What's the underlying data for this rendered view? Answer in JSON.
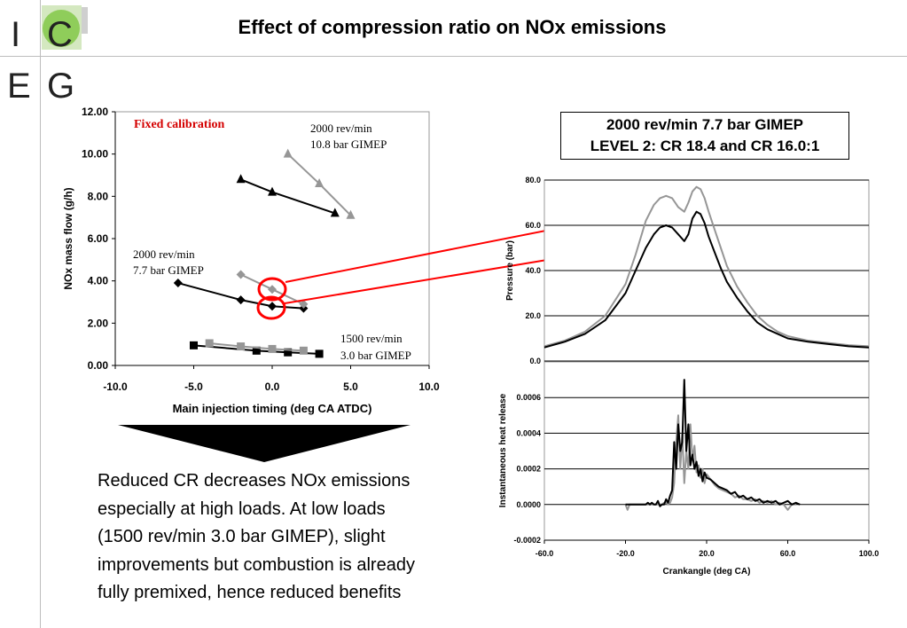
{
  "logo": {
    "letters": [
      "I",
      "C",
      "E",
      "G"
    ]
  },
  "title": "Effect of compression ratio on NOx emissions",
  "box_title": {
    "line1": "2000 rev/min 7.7 bar GIMEP",
    "line2": "LEVEL 2: CR 18.4 and CR 16.0:1"
  },
  "annotations": {
    "fixed": "Fixed calibration",
    "high_load_1": "2000 rev/min",
    "high_load_2": "10.8 bar GIMEP",
    "mid_load_1": "2000 rev/min",
    "mid_load_2": "7.7 bar GIMEP",
    "low_load_1": "1500 rev/min",
    "low_load_2": "3.0 bar GIMEP"
  },
  "body_text_lines": [
    "Reduced CR decreases NOx emissions",
    "especially at high loads. At low loads",
    "(1500 rev/min 3.0 bar GIMEP), slight",
    "improvements but combustion is already",
    "fully premixed, hence reduced benefits"
  ],
  "colors": {
    "cr_high": "#000000",
    "cr_low": "#969696",
    "highlight": "#ff0000"
  },
  "chart_data": [
    {
      "type": "scatter",
      "xlabel": "Main injection timing (deg CA ATDC)",
      "ylabel": "NOx mass flow (g/h)",
      "xlim": [
        -10,
        10
      ],
      "ylim": [
        0,
        12
      ],
      "xticks": [
        "-10.0",
        "-5.0",
        "0.0",
        "5.0",
        "10.0"
      ],
      "yticks": [
        "0.00",
        "2.00",
        "4.00",
        "6.00",
        "8.00",
        "10.00",
        "12.00"
      ],
      "grid": false,
      "series": [
        {
          "color": "black",
          "marker": "triangle",
          "x": [
            -2,
            0,
            4
          ],
          "y": [
            8.8,
            8.2,
            7.2
          ]
        },
        {
          "color": "gray",
          "marker": "triangle",
          "x": [
            1,
            3,
            5
          ],
          "y": [
            10.0,
            8.6,
            7.1
          ]
        },
        {
          "color": "black",
          "marker": "diamond",
          "x": [
            -6,
            -2,
            0,
            2
          ],
          "y": [
            3.9,
            3.1,
            2.8,
            2.7
          ]
        },
        {
          "color": "gray",
          "marker": "diamond",
          "x": [
            -2,
            0,
            2
          ],
          "y": [
            4.3,
            3.6,
            2.9
          ]
        },
        {
          "color": "black",
          "marker": "square",
          "x": [
            -5,
            -1,
            1,
            3
          ],
          "y": [
            0.95,
            0.7,
            0.62,
            0.55
          ]
        },
        {
          "color": "gray",
          "marker": "square",
          "x": [
            -4,
            -2,
            0,
            2
          ],
          "y": [
            1.05,
            0.9,
            0.78,
            0.7
          ]
        }
      ]
    },
    {
      "type": "line",
      "xlabel": "",
      "ylabel": "Pressure (bar)",
      "xlim": [
        -60,
        100
      ],
      "ylim": [
        0,
        80
      ],
      "yticks": [
        "0.0",
        "20.0",
        "40.0",
        "60.0",
        "80.0"
      ],
      "grid": true,
      "series": [
        {
          "color": "gray",
          "x": [
            -60,
            -50,
            -40,
            -30,
            -20,
            -15,
            -10,
            -6,
            -3,
            0,
            3,
            6,
            9,
            11,
            13,
            15,
            17,
            19,
            21,
            24,
            27,
            30,
            35,
            40,
            45,
            50,
            55,
            60,
            70,
            80,
            90,
            100
          ],
          "y": [
            6.5,
            9,
            13,
            20,
            34,
            47,
            62,
            69,
            72,
            73,
            72,
            68,
            66,
            70,
            75,
            77,
            76,
            72,
            66,
            58,
            50,
            42,
            33,
            26,
            20,
            16,
            13,
            11,
            9,
            8,
            7,
            6.5
          ]
        },
        {
          "color": "black",
          "x": [
            -60,
            -50,
            -40,
            -30,
            -20,
            -15,
            -10,
            -6,
            -3,
            0,
            3,
            6,
            9,
            11,
            13,
            15,
            17,
            19,
            21,
            24,
            27,
            30,
            35,
            40,
            45,
            50,
            55,
            60,
            70,
            80,
            90,
            100
          ],
          "y": [
            6,
            8.5,
            12,
            18,
            30,
            40,
            50,
            56,
            59,
            60,
            59,
            56,
            53,
            56,
            63,
            66,
            65,
            61,
            55,
            48,
            41,
            35,
            28,
            22,
            17,
            14,
            12,
            10,
            8.5,
            7.5,
            6.5,
            6
          ]
        }
      ]
    },
    {
      "type": "line",
      "xlabel": "Crankangle (deg CA)",
      "ylabel": "Instantaneous heat release",
      "xlim": [
        -60,
        100
      ],
      "ylim": [
        -0.0002,
        0.0008
      ],
      "xticks": [
        "-60.0",
        "-20.0",
        "20.0",
        "60.0",
        "100.0"
      ],
      "yticks": [
        "-0.0002",
        "0.0000",
        "0.0002",
        "0.0004",
        "0.0006"
      ],
      "grid": true,
      "series": [
        {
          "color": "gray",
          "x": [
            -20,
            -19,
            -18,
            -17,
            -16,
            -15,
            -14,
            -13,
            -12,
            -11,
            -10,
            -9,
            -8,
            -7,
            -6,
            -5,
            -4,
            -3,
            -2,
            -1,
            0,
            1,
            2,
            3,
            4,
            5,
            6,
            7,
            8,
            9,
            10,
            11,
            12,
            13,
            14,
            15,
            16,
            17,
            18,
            19,
            20,
            22,
            24,
            26,
            28,
            30,
            32,
            34,
            36,
            38,
            40,
            42,
            44,
            46,
            48,
            50,
            52,
            54,
            56,
            58,
            60,
            62,
            64
          ],
          "y": [
            0,
            -3e-05,
            0,
            0,
            0,
            0,
            0,
            0,
            0,
            0,
            0,
            0,
            0,
            0,
            0,
            0,
            0,
            0,
            0,
            1e-05,
            1e-05,
            0,
            1e-05,
            4e-05,
            0.00012,
            0.00035,
            0.0005,
            0.0002,
            0.0004,
            0.00012,
            0.0003,
            0.0002,
            0.00045,
            0.00025,
            0.00033,
            0.00018,
            0.00022,
            0.00015,
            0.0002,
            0.00012,
            0.00017,
            0.00014,
            0.00011,
            9e-05,
            8e-05,
            7e-05,
            6e-05,
            4e-05,
            5e-05,
            3e-05,
            3e-05,
            2e-05,
            3e-05,
            1e-05,
            2e-05,
            1e-05,
            2e-05,
            0,
            1e-05,
            0,
            -3e-05,
            0,
            0
          ]
        },
        {
          "color": "black",
          "x": [
            -20,
            -19,
            -18,
            -17,
            -16,
            -15,
            -14,
            -13,
            -12,
            -11,
            -10,
            -9,
            -8,
            -7,
            -6,
            -5,
            -4,
            -3,
            -2,
            -1,
            0,
            1,
            2,
            3,
            4,
            5,
            6,
            7,
            8,
            9,
            10,
            11,
            12,
            13,
            14,
            15,
            16,
            17,
            18,
            19,
            20,
            22,
            24,
            26,
            28,
            30,
            32,
            34,
            36,
            38,
            40,
            42,
            44,
            46,
            48,
            50,
            52,
            54,
            56,
            58,
            60,
            62,
            64,
            66
          ],
          "y": [
            0,
            0,
            0,
            0,
            0,
            0,
            0,
            0,
            0,
            0,
            0,
            1e-05,
            0,
            1e-05,
            0,
            0,
            2e-05,
            -1e-05,
            0,
            0,
            3e-05,
            1e-05,
            5e-05,
            8e-05,
            0.00035,
            0.0002,
            0.00045,
            0.0003,
            0.00035,
            0.0007,
            0.0003,
            0.00045,
            0.00022,
            0.00028,
            0.0002,
            0.00024,
            0.00016,
            0.0002,
            0.00013,
            0.00018,
            0.00015,
            0.00014,
            0.00012,
            0.0001,
            9e-05,
            8e-05,
            6e-05,
            7e-05,
            4e-05,
            5e-05,
            3e-05,
            4e-05,
            2e-05,
            3e-05,
            1e-05,
            2e-05,
            1e-05,
            2e-05,
            0,
            1e-05,
            2e-05,
            0,
            1e-05,
            0
          ]
        }
      ]
    }
  ]
}
